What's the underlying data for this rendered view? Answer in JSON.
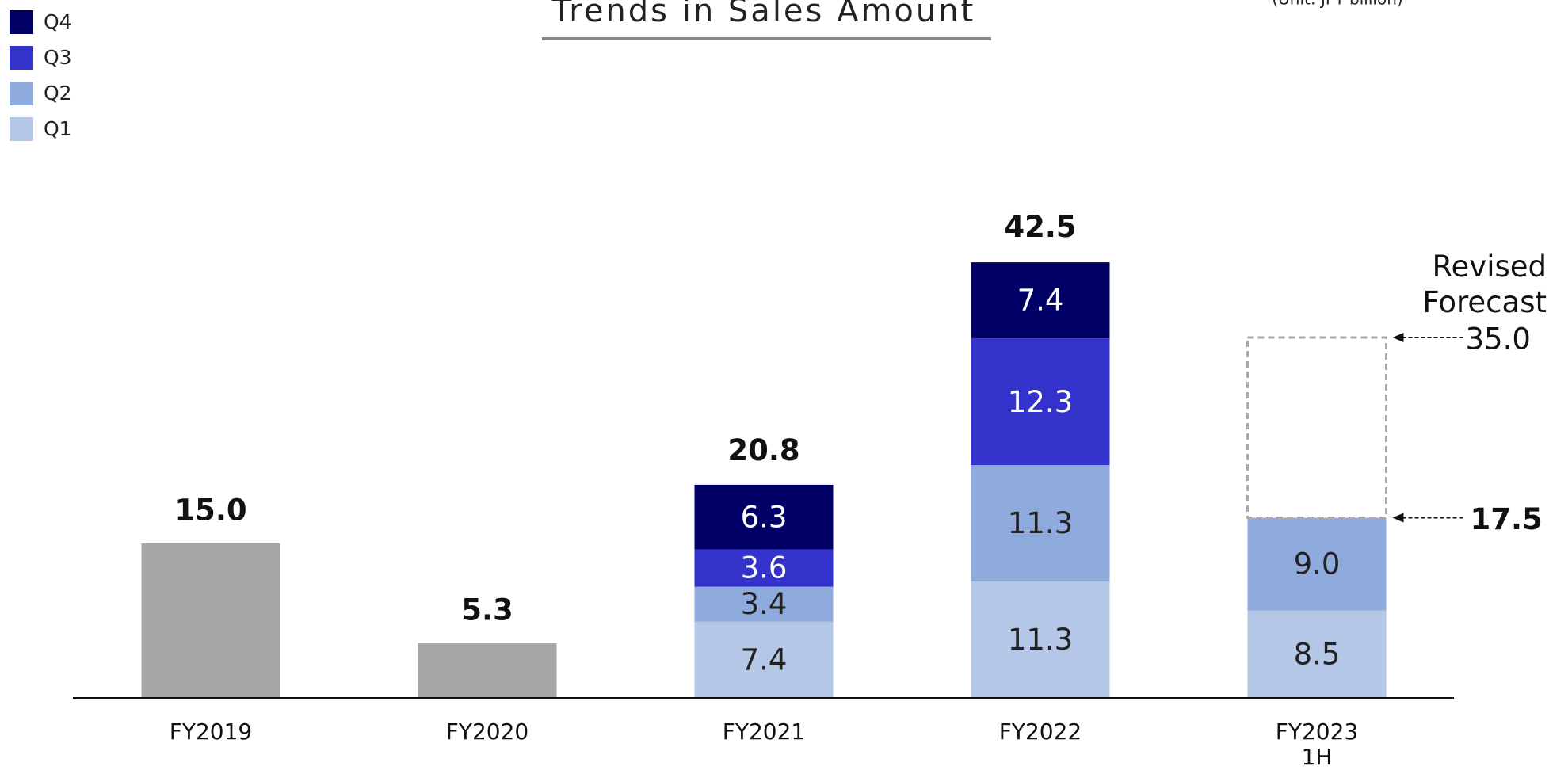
{
  "chart_data": {
    "type": "stacked_bar",
    "title": "Trends in Sales Amount",
    "unit_note": "(Unit: JPY billion)",
    "categories": [
      "FY2019",
      "FY2020",
      "FY2021",
      "FY2022",
      "FY2023\n1H"
    ],
    "annual": {
      "color": "#a6a6a6",
      "values": [
        15.0,
        5.3,
        null,
        null,
        null
      ]
    },
    "series": [
      {
        "name": "Q1",
        "color": "#b4c7e7",
        "values": [
          null,
          null,
          7.4,
          11.3,
          8.5
        ]
      },
      {
        "name": "Q2",
        "color": "#8faadc",
        "values": [
          null,
          null,
          3.4,
          11.3,
          9.0
        ],
        "value_labels": [
          null,
          null,
          "3.4",
          "11.3",
          "9.0"
        ]
      },
      {
        "name": "Q3",
        "color": "#3333cc",
        "values": [
          null,
          null,
          3.6,
          12.3,
          null
        ]
      },
      {
        "name": "Q4",
        "color": "#000066",
        "values": [
          null,
          null,
          6.3,
          7.4,
          null
        ]
      }
    ],
    "totals": {
      "values": [
        15.0,
        5.3,
        20.8,
        42.5,
        17.5
      ],
      "value_labels": [
        "15.0",
        "5.3",
        "20.8",
        "42.5",
        "17.5"
      ]
    },
    "forecast": {
      "label": "Revised\nForecast",
      "value": 35.0,
      "value_label": "35.0"
    },
    "ylim": [
      0,
      50
    ]
  }
}
